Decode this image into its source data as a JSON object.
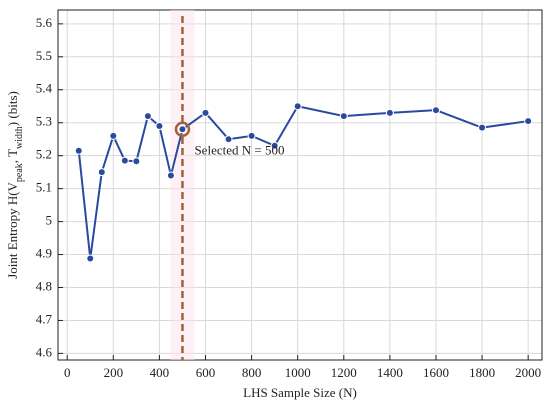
{
  "chart_data": {
    "type": "line",
    "x_label": "LHS Sample Size (N)",
    "y_label_parts": [
      "Joint Entropy H(V",
      "peak",
      ", T",
      "width",
      ") (bits)"
    ],
    "x": [
      50,
      100,
      150,
      200,
      250,
      300,
      350,
      400,
      450,
      500,
      600,
      700,
      800,
      900,
      1000,
      1200,
      1400,
      1600,
      1800,
      2000
    ],
    "series": [
      {
        "color": "#2a4aa0",
        "values": [
          5.215,
          4.888,
          5.15,
          5.26,
          5.185,
          5.183,
          5.32,
          5.29,
          5.14,
          5.28,
          5.33,
          5.25,
          5.26,
          5.23,
          5.35,
          5.32,
          5.33,
          5.338,
          5.285,
          5.305
        ]
      }
    ],
    "xlim": [
      -40,
      2060
    ],
    "ylim": [
      4.58,
      5.642
    ],
    "xticks": [
      0,
      200,
      400,
      600,
      800,
      1000,
      1200,
      1400,
      1600,
      1800,
      2000
    ],
    "yticks": [
      4.6,
      4.7,
      4.8,
      4.9,
      5,
      5.1,
      5.2,
      5.3,
      5.4,
      5.5,
      5.6
    ],
    "grid": true,
    "selected": {
      "x": 500,
      "y": 5.28,
      "label": "Selected N = 500",
      "color": "#a0623a"
    }
  }
}
